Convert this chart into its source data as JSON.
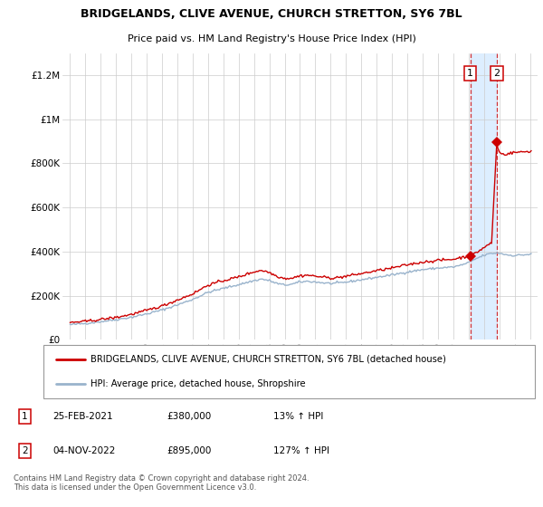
{
  "title1": "BRIDGELANDS, CLIVE AVENUE, CHURCH STRETTON, SY6 7BL",
  "title2": "Price paid vs. HM Land Registry's House Price Index (HPI)",
  "legend_line1": "BRIDGELANDS, CLIVE AVENUE, CHURCH STRETTON, SY6 7BL (detached house)",
  "legend_line2": "HPI: Average price, detached house, Shropshire",
  "annotation1_date": "25-FEB-2021",
  "annotation1_price": "£380,000",
  "annotation1_hpi": "13% ↑ HPI",
  "annotation2_date": "04-NOV-2022",
  "annotation2_price": "£895,000",
  "annotation2_hpi": "127% ↑ HPI",
  "footer": "Contains HM Land Registry data © Crown copyright and database right 2024.\nThis data is licensed under the Open Government Licence v3.0.",
  "ylim": [
    0,
    1300000
  ],
  "yticks": [
    0,
    200000,
    400000,
    600000,
    800000,
    1000000,
    1200000
  ],
  "ytick_labels": [
    "£0",
    "£200K",
    "£400K",
    "£600K",
    "£800K",
    "£1M",
    "£1.2M"
  ],
  "line1_color": "#cc0000",
  "line2_color": "#99b3cc",
  "shade_color": "#ddeeff",
  "sale1_x": 2021.12,
  "sale1_y": 380000,
  "sale2_x": 2022.84,
  "sale2_y": 895000,
  "xmin": 1994.5,
  "xmax": 2025.5,
  "xticks": [
    1995,
    1996,
    1997,
    1998,
    1999,
    2000,
    2001,
    2002,
    2003,
    2004,
    2005,
    2006,
    2007,
    2008,
    2009,
    2010,
    2011,
    2012,
    2013,
    2014,
    2015,
    2016,
    2017,
    2018,
    2019,
    2020,
    2021,
    2022,
    2023,
    2024,
    2025
  ]
}
